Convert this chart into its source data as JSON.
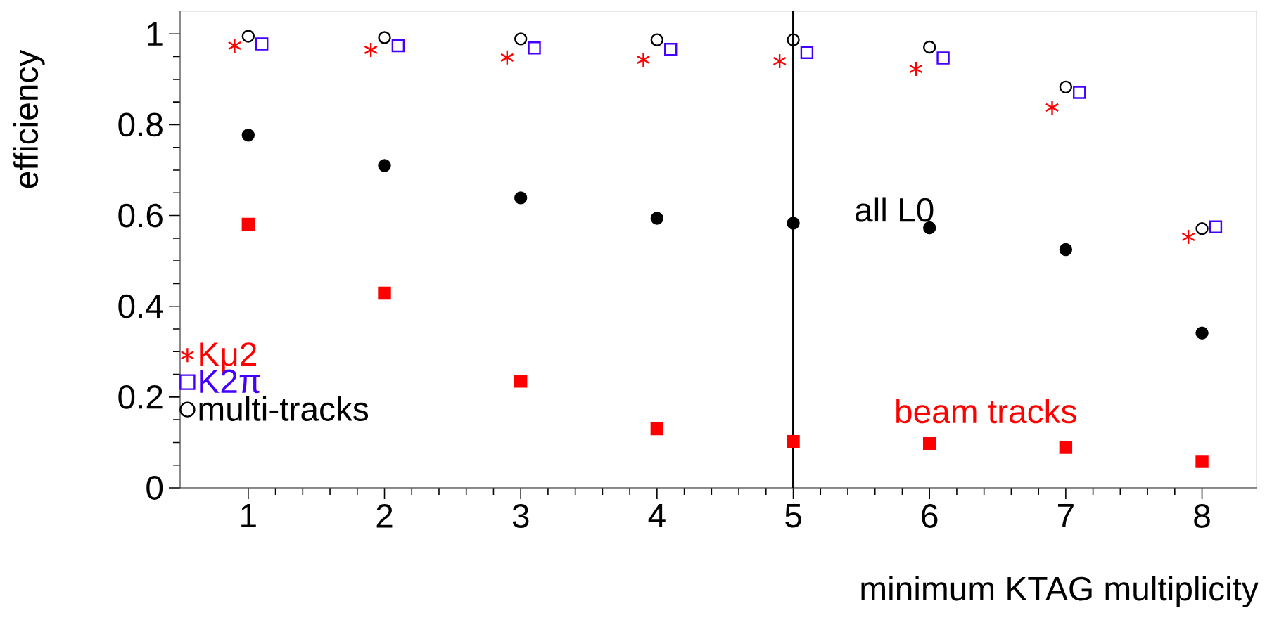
{
  "chart_data": {
    "type": "scatter",
    "xlabel": "minimum KTAG multiplicity",
    "ylabel": "efficiency",
    "xlim": [
      0.5,
      8.4
    ],
    "ylim": [
      0,
      1.05
    ],
    "xticks": [
      1,
      2,
      3,
      4,
      5,
      6,
      7,
      8
    ],
    "yticks": [
      0,
      0.2,
      0.4,
      0.6,
      0.8,
      1
    ],
    "legend": "bottom left",
    "grid": false,
    "ref_lines": [
      {
        "axis": "x",
        "value": 5,
        "color": "#000000"
      }
    ],
    "annotations": [
      {
        "text": "all L0",
        "x": 6,
        "y": 0.573
      },
      {
        "text": "beam tracks",
        "x": 6,
        "y": 0.098
      }
    ],
    "series": [
      {
        "name": "Kμ2",
        "color": "#ff0000",
        "marker": "cross",
        "x": [
          0.9,
          1.9,
          2.9,
          3.9,
          4.9,
          5.9,
          6.9,
          7.9
        ],
        "values": [
          0.974,
          0.965,
          0.948,
          0.943,
          0.94,
          0.923,
          0.838,
          0.553
        ]
      },
      {
        "name": "K2π",
        "color": "#4400ff",
        "marker": "square",
        "x": [
          1.1,
          2.1,
          3.1,
          4.1,
          5.1,
          6.1,
          7.1,
          8.1
        ],
        "values": [
          0.978,
          0.974,
          0.969,
          0.966,
          0.959,
          0.947,
          0.871,
          0.575
        ]
      },
      {
        "name": "multi-tracks",
        "color": "#000000",
        "marker": "circle",
        "x": [
          1,
          2,
          3,
          4,
          5,
          6,
          7,
          8
        ],
        "values": [
          0.995,
          0.992,
          0.989,
          0.987,
          0.987,
          0.971,
          0.883,
          0.571
        ]
      },
      {
        "color": "#000000",
        "marker": "circle",
        "x": [
          1,
          2,
          3,
          4,
          5,
          6,
          7,
          8
        ],
        "values": [
          0.777,
          0.71,
          0.639,
          0.594,
          0.583,
          0.573,
          0.525,
          0.341
        ]
      },
      {
        "color": "#ff0000",
        "marker": "square",
        "x": [
          1,
          2,
          3,
          4,
          5,
          6,
          7,
          8
        ],
        "values": [
          0.581,
          0.429,
          0.235,
          0.13,
          0.102,
          0.098,
          0.089,
          0.058
        ]
      }
    ]
  }
}
